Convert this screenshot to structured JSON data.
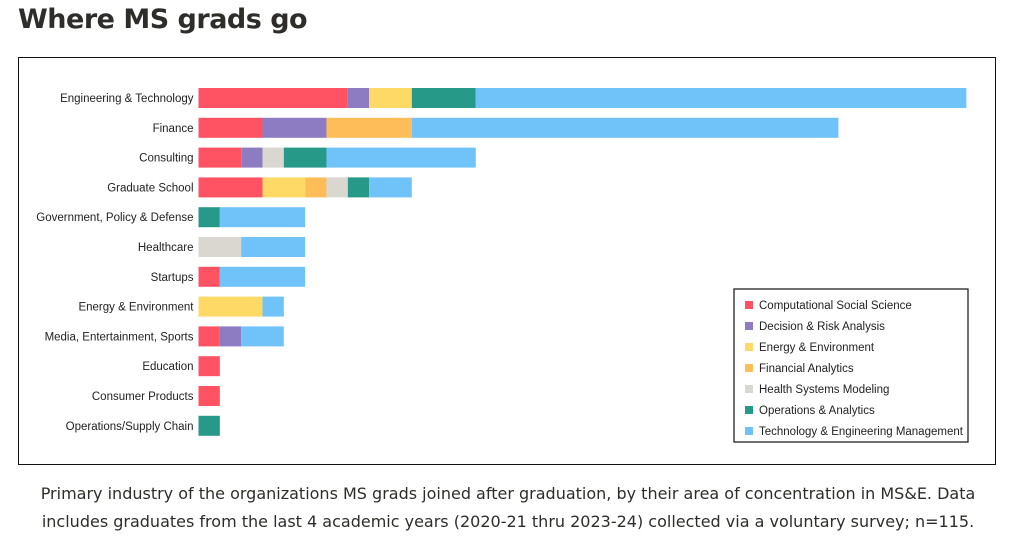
{
  "page": {
    "title": "Where MS grads go",
    "caption": "Primary industry of the organizations MS grads joined after graduation, by their area of concentration in MS&E. Data includes graduates from the last 4 academic years (2020-21 thru 2023-24) collected via a voluntary survey; n=115."
  },
  "chart_data": {
    "type": "bar",
    "orientation": "horizontal",
    "stacked": true,
    "title": "",
    "xlabel": "",
    "ylabel": "",
    "legend_position": "bottom-right",
    "categories": [
      "Engineering & Technology",
      "Finance",
      "Consulting",
      "Graduate School",
      "Government, Policy & Defense",
      "Healthcare",
      "Startups",
      "Energy & Environment",
      "Media, Entertainment, Sports",
      "Education",
      "Consumer Products",
      "Operations/Supply Chain"
    ],
    "series": [
      {
        "name": "Computational Social Science",
        "color": "#ff5263",
        "values": [
          7,
          3,
          2,
          3,
          0,
          0,
          1,
          0,
          1,
          1,
          1,
          0
        ]
      },
      {
        "name": "Decision & Risk Analysis",
        "color": "#8e7cc3",
        "values": [
          1,
          3,
          1,
          0,
          0,
          0,
          0,
          0,
          1,
          0,
          0,
          0
        ]
      },
      {
        "name": "Energy & Environment",
        "color": "#ffd966",
        "values": [
          2,
          0,
          0,
          2,
          0,
          0,
          0,
          3,
          0,
          0,
          0,
          0
        ]
      },
      {
        "name": "Financial Analytics",
        "color": "#ffbd59",
        "values": [
          0,
          4,
          0,
          1,
          0,
          0,
          0,
          0,
          0,
          0,
          0,
          0
        ]
      },
      {
        "name": "Health Systems Modeling",
        "color": "#d9d7cf",
        "values": [
          0,
          0,
          1,
          1,
          0,
          2,
          0,
          0,
          0,
          0,
          0,
          0
        ]
      },
      {
        "name": "Operations & Analytics",
        "color": "#279989",
        "values": [
          3,
          0,
          2,
          1,
          1,
          0,
          0,
          0,
          0,
          0,
          0,
          1
        ]
      },
      {
        "name": "Technology & Engineering Management",
        "color": "#6fc3f9",
        "values": [
          23,
          20,
          7,
          2,
          4,
          3,
          4,
          1,
          2,
          0,
          0,
          0
        ]
      }
    ]
  }
}
